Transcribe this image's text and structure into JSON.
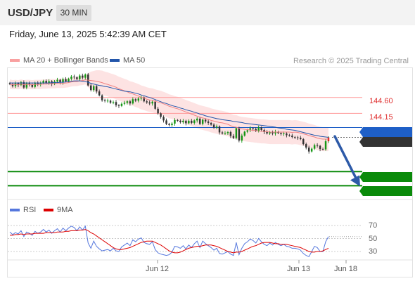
{
  "header": {
    "pair": "USD/JPY",
    "timeframe": "30 MIN",
    "datetime": "Friday, June 13, 2025 5:42:39 AM CET"
  },
  "legend": {
    "ma20": "MA 20 + Bollinger Bands",
    "ma20_color": "#f08080",
    "ma50": "MA 50",
    "ma50_color": "#2255aa",
    "credit": "Research © 2025 Trading Central"
  },
  "levels": {
    "r2": "144.60",
    "r1": "144.15",
    "pivot": "143.75",
    "last": "143.47",
    "s1": "142.50",
    "s2": "142.10",
    "resistance_color": "#ff9999",
    "pivot_color": "#1e5fc7",
    "support_color": "#0a8a0a",
    "last_color": "#333333"
  },
  "rsi": {
    "rsi_label": "RSI",
    "rsi_color": "#5577dd",
    "ma_label": "9MA",
    "ma_color": "#dd0000",
    "levels": [
      "70",
      "50",
      "30"
    ]
  },
  "xaxis": {
    "labels": [
      "Jun 12",
      "Jun 13",
      "Jun 18"
    ]
  },
  "chart_data": {
    "type": "candlestick",
    "ylim": [
      141.75,
      145.45
    ],
    "close": [
      144.98,
      144.92,
      145.0,
      144.95,
      145.03,
      144.88,
      145.01,
      144.97,
      144.9,
      145.02,
      144.97,
      145.0,
      145.07,
      145.01,
      145.06,
      144.98,
      145.05,
      145.1,
      145.02,
      145.12,
      145.06,
      145.13,
      145.19,
      145.17,
      145.12,
      145.22,
      145.16,
      145.25,
      144.94,
      144.81,
      144.92,
      144.77,
      144.66,
      144.52,
      144.51,
      144.51,
      144.45,
      144.47,
      144.38,
      144.36,
      144.42,
      144.45,
      144.49,
      144.43,
      144.55,
      144.51,
      144.57,
      144.6,
      144.49,
      144.46,
      144.43,
      144.48,
      144.28,
      144.15,
      144.05,
      143.95,
      143.85,
      143.82,
      143.86,
      143.96,
      143.94,
      143.9,
      143.94,
      143.87,
      143.94,
      143.88,
      143.95,
      144.0,
      143.85,
      143.97,
      143.92,
      143.88,
      143.83,
      143.75,
      143.78,
      143.61,
      143.58,
      143.59,
      143.62,
      143.51,
      143.45,
      143.73,
      143.38,
      143.52,
      143.63,
      143.67,
      143.73,
      143.71,
      143.65,
      143.75,
      143.68,
      143.62,
      143.58,
      143.62,
      143.58,
      143.63,
      143.59,
      143.56,
      143.58,
      143.53,
      143.52,
      143.48,
      143.47,
      143.46,
      143.42,
      143.28,
      143.18,
      143.07,
      143.15,
      143.25,
      143.23,
      143.14,
      143.13,
      143.36,
      143.47
    ],
    "ma20": [
      144.98,
      144.96,
      144.97,
      144.96,
      144.98,
      144.96,
      144.97,
      144.97,
      144.96,
      144.97,
      144.97,
      144.97,
      144.98,
      144.98,
      144.99,
      144.99,
      144.99,
      145.0,
      145.0,
      145.0,
      145.01,
      145.02,
      145.04,
      145.05,
      145.05,
      145.07,
      145.08,
      145.1,
      145.09,
      145.08,
      145.07,
      145.06,
      145.04,
      145.02,
      144.99,
      144.97,
      144.94,
      144.92,
      144.89,
      144.85,
      144.82,
      144.79,
      144.76,
      144.72,
      144.7,
      144.67,
      144.64,
      144.6,
      144.58,
      144.55,
      144.53,
      144.52,
      144.49,
      144.47,
      144.45,
      144.42,
      144.39,
      144.35,
      144.33,
      144.3,
      144.28,
      144.25,
      144.22,
      144.19,
      144.16,
      144.13,
      144.1,
      144.07,
      144.04,
      144.02,
      144.0,
      143.98,
      143.95,
      143.93,
      143.91,
      143.89,
      143.88,
      143.86,
      143.84,
      143.8,
      143.77,
      143.76,
      143.73,
      143.71,
      143.7,
      143.69,
      143.68,
      143.67,
      143.66,
      143.65,
      143.64,
      143.64,
      143.63,
      143.62,
      143.62,
      143.62,
      143.62,
      143.62,
      143.62,
      143.62,
      143.62,
      143.61,
      143.62,
      143.61,
      143.59,
      143.57,
      143.55,
      143.52,
      143.5,
      143.48,
      143.45,
      143.43,
      143.42,
      143.42,
      143.42
    ],
    "ma50": [
      145.01,
      145.01,
      145.01,
      145.01,
      145.01,
      145.01,
      145.01,
      145.01,
      145.01,
      145.01,
      145.01,
      145.01,
      145.01,
      145.01,
      145.01,
      145.02,
      145.02,
      145.02,
      145.03,
      145.03,
      145.04,
      145.05,
      145.06,
      145.07,
      145.07,
      145.07,
      145.06,
      145.05,
      145.03,
      145.0,
      144.98,
      144.96,
      144.94,
      144.93,
      144.91,
      144.9,
      144.88,
      144.86,
      144.84,
      144.82,
      144.8,
      144.78,
      144.77,
      144.76,
      144.74,
      144.72,
      144.7,
      144.67,
      144.65,
      144.62,
      144.6,
      144.57,
      144.54,
      144.51,
      144.48,
      144.45,
      144.43,
      144.4,
      144.37,
      144.35,
      144.33,
      144.3,
      144.28,
      144.25,
      144.23,
      144.21,
      144.18,
      144.16,
      144.13,
      144.11,
      144.08,
      144.06,
      144.04,
      144.02,
      144.0,
      143.99,
      143.97,
      143.96,
      143.95,
      143.94,
      143.92,
      143.91,
      143.9,
      143.89,
      143.87,
      143.86,
      143.85,
      143.84,
      143.83,
      143.82,
      143.81,
      143.8,
      143.79,
      143.78,
      143.77,
      143.76,
      143.74,
      143.73,
      143.72,
      143.7,
      143.69,
      143.68,
      143.67,
      143.65,
      143.63,
      143.61,
      143.59,
      143.57,
      143.55,
      143.53,
      143.52,
      143.5,
      143.49,
      143.48,
      143.47
    ],
    "bb_upper": [
      145.11,
      145.09,
      145.1,
      145.09,
      145.11,
      145.09,
      145.1,
      145.1,
      145.09,
      145.1,
      145.1,
      145.1,
      145.11,
      145.11,
      145.12,
      145.12,
      145.12,
      145.13,
      145.13,
      145.13,
      145.14,
      145.15,
      145.17,
      145.18,
      145.18,
      145.2,
      145.21,
      145.23,
      145.29,
      145.33,
      145.35,
      145.37,
      145.37,
      145.36,
      145.33,
      145.31,
      145.28,
      145.26,
      145.23,
      145.19,
      145.16,
      145.13,
      145.1,
      145.06,
      145.04,
      145.01,
      144.98,
      144.94,
      144.92,
      144.89,
      144.87,
      144.86,
      144.83,
      144.81,
      144.79,
      144.76,
      144.73,
      144.69,
      144.67,
      144.64,
      144.62,
      144.59,
      144.56,
      144.53,
      144.5,
      144.47,
      144.44,
      144.41,
      144.38,
      144.36,
      144.34,
      144.32,
      144.29,
      144.27,
      144.25,
      144.23,
      144.22,
      144.2,
      144.18,
      144.14,
      144.11,
      144.1,
      144.07,
      144.05,
      144.04,
      144.03,
      144.02,
      144.01,
      144.0,
      143.99,
      143.98,
      143.98,
      143.97,
      143.96,
      143.96,
      143.96,
      143.96,
      143.96,
      143.96,
      143.96,
      143.96,
      143.95,
      143.96,
      143.95,
      143.93,
      143.91,
      143.89,
      143.86,
      143.84,
      143.82,
      143.79,
      143.77,
      143.76,
      143.76,
      143.76
    ],
    "bb_lower": [
      144.85,
      144.83,
      144.84,
      144.83,
      144.85,
      144.83,
      144.84,
      144.84,
      144.83,
      144.84,
      144.84,
      144.84,
      144.85,
      144.85,
      144.86,
      144.86,
      144.86,
      144.87,
      144.87,
      144.87,
      144.88,
      144.89,
      144.91,
      144.92,
      144.92,
      144.94,
      144.95,
      144.97,
      144.89,
      144.83,
      144.79,
      144.75,
      144.71,
      144.68,
      144.65,
      144.63,
      144.6,
      144.58,
      144.55,
      144.51,
      144.48,
      144.45,
      144.42,
      144.38,
      144.36,
      144.33,
      144.3,
      144.26,
      144.24,
      144.21,
      144.19,
      144.18,
      144.15,
      144.13,
      144.11,
      144.08,
      144.05,
      144.01,
      143.99,
      143.96,
      143.94,
      143.91,
      143.88,
      143.85,
      143.82,
      143.79,
      143.76,
      143.73,
      143.7,
      143.68,
      143.66,
      143.64,
      143.61,
      143.59,
      143.57,
      143.55,
      143.54,
      143.52,
      143.5,
      143.46,
      143.43,
      143.42,
      143.39,
      143.37,
      143.36,
      143.35,
      143.34,
      143.33,
      143.32,
      143.31,
      143.3,
      143.3,
      143.29,
      143.28,
      143.28,
      143.28,
      143.28,
      143.28,
      143.28,
      143.28,
      143.28,
      143.27,
      143.28,
      143.27,
      143.25,
      143.23,
      143.21,
      143.18,
      143.16,
      143.14,
      143.11,
      143.09,
      143.08,
      143.08,
      143.08
    ],
    "forecast": [
      143.5,
      142.1
    ],
    "rsi_values": [
      60,
      56,
      59,
      57,
      62,
      53,
      60,
      58,
      55,
      61,
      58,
      60,
      64,
      60,
      63,
      58,
      62,
      65,
      60,
      66,
      62,
      66,
      69,
      67,
      62,
      68,
      63,
      69,
      43,
      35,
      46,
      38,
      34,
      31,
      32,
      33,
      31,
      35,
      31,
      30,
      37,
      40,
      43,
      39,
      48,
      45,
      49,
      51,
      44,
      42,
      41,
      45,
      33,
      28,
      26,
      25,
      24,
      25,
      29,
      38,
      37,
      35,
      39,
      34,
      40,
      36,
      42,
      46,
      36,
      46,
      42,
      39,
      36,
      32,
      35,
      27,
      26,
      28,
      30,
      26,
      24,
      44,
      25,
      35,
      42,
      45,
      49,
      47,
      43,
      50,
      45,
      41,
      39,
      43,
      40,
      44,
      41,
      39,
      41,
      38,
      37,
      35,
      35,
      34,
      32,
      27,
      24,
      22,
      30,
      38,
      36,
      30,
      30,
      45,
      53
    ],
    "rsi_ma": [
      55,
      55,
      56,
      56,
      57,
      56,
      57,
      57,
      57,
      58,
      58,
      58,
      58,
      59,
      59,
      59,
      59,
      60,
      60,
      60,
      61,
      61,
      62,
      62,
      62,
      63,
      63,
      64,
      62,
      59,
      57,
      54,
      51,
      48,
      45,
      42,
      39,
      36,
      34,
      33,
      33,
      34,
      35,
      36,
      38,
      40,
      42,
      44,
      45,
      46,
      46,
      46,
      44,
      42,
      40,
      37,
      34,
      31,
      29,
      28,
      28,
      29,
      31,
      33,
      35,
      36,
      37,
      38,
      38,
      39,
      40,
      40,
      40,
      39,
      38,
      36,
      34,
      32,
      30,
      29,
      28,
      29,
      29,
      30,
      32,
      34,
      36,
      38,
      39,
      41,
      43,
      44,
      44,
      44,
      43,
      42,
      42,
      41,
      41,
      41,
      40,
      39,
      38,
      37,
      36,
      34,
      32,
      30,
      29,
      29,
      30,
      30,
      31,
      33,
      35
    ],
    "rsi_ylim": [
      20,
      80
    ]
  }
}
